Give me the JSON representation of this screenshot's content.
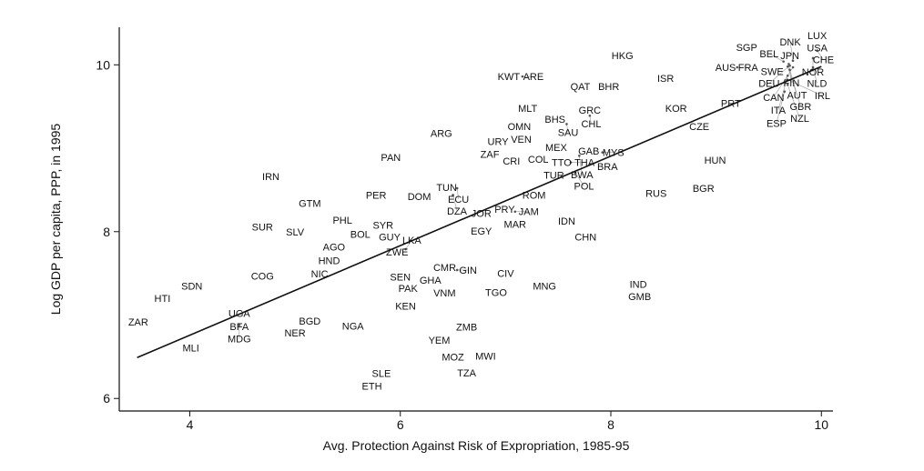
{
  "chart_data": {
    "type": "scatter",
    "title": "",
    "xlabel": "Avg. Protection Against Risk of Expropriation, 1985-95",
    "ylabel": "Log GDP per capita, PPP, in 1995",
    "xlim": [
      3.33,
      10.11
    ],
    "ylim": [
      5.85,
      10.45
    ],
    "xticks": [
      4,
      6,
      8,
      10
    ],
    "yticks": [
      6,
      8,
      10
    ],
    "grid": false,
    "marker": "country-code-label",
    "fit_line": {
      "x": [
        3.5,
        10.0
      ],
      "y": [
        6.49,
        9.98
      ]
    },
    "points": [
      {
        "label": "ZAR",
        "x": 3.51,
        "y": 6.92
      },
      {
        "label": "HTI",
        "x": 3.74,
        "y": 7.2
      },
      {
        "label": "SDN",
        "x": 4.02,
        "y": 7.35
      },
      {
        "label": "MLI",
        "x": 4.01,
        "y": 6.61
      },
      {
        "label": "UGA",
        "x": 4.47,
        "y": 7.02
      },
      {
        "label": "BFA",
        "x": 4.47,
        "y": 6.93
      },
      {
        "label": "MDG",
        "x": 4.47,
        "y": 6.88
      },
      {
        "label": "COG",
        "x": 4.69,
        "y": 7.47
      },
      {
        "label": "SUR",
        "x": 4.69,
        "y": 8.06
      },
      {
        "label": "IRN",
        "x": 4.77,
        "y": 8.66
      },
      {
        "label": "SLV",
        "x": 5.0,
        "y": 8.0
      },
      {
        "label": "GTM",
        "x": 5.14,
        "y": 8.34
      },
      {
        "label": "BGD",
        "x": 5.14,
        "y": 6.93
      },
      {
        "label": "NER",
        "x": 5.0,
        "y": 6.79
      },
      {
        "label": "PHL",
        "x": 5.45,
        "y": 8.14
      },
      {
        "label": "BOL",
        "x": 5.62,
        "y": 7.97
      },
      {
        "label": "SYR",
        "x": 5.81,
        "y": 8.08
      },
      {
        "label": "GUY",
        "x": 5.88,
        "y": 7.96
      },
      {
        "label": "AGO",
        "x": 5.37,
        "y": 7.82
      },
      {
        "label": "HND",
        "x": 5.31,
        "y": 7.75
      },
      {
        "label": "NIC",
        "x": 5.22,
        "y": 7.59
      },
      {
        "label": "NGA",
        "x": 5.55,
        "y": 6.87
      },
      {
        "label": "PER",
        "x": 5.77,
        "y": 8.44
      },
      {
        "label": "PAN",
        "x": 5.91,
        "y": 8.89
      },
      {
        "label": "DOM",
        "x": 6.18,
        "y": 8.42
      },
      {
        "label": "ZWE",
        "x": 5.97,
        "y": 7.76
      },
      {
        "label": "LKA",
        "x": 6.05,
        "y": 7.79
      },
      {
        "label": "SEN",
        "x": 6.0,
        "y": 7.46
      },
      {
        "label": "PAK",
        "x": 6.06,
        "y": 7.42
      },
      {
        "label": "GHA",
        "x": 6.26,
        "y": 7.42
      },
      {
        "label": "CMR",
        "x": 6.44,
        "y": 7.55
      },
      {
        "label": "GIN",
        "x": 6.54,
        "y": 7.54
      },
      {
        "label": "VNM",
        "x": 6.42,
        "y": 7.33
      },
      {
        "label": "KEN",
        "x": 6.05,
        "y": 7.11
      },
      {
        "label": "YEM",
        "x": 6.37,
        "y": 6.7
      },
      {
        "label": "ZMB",
        "x": 6.63,
        "y": 6.86
      },
      {
        "label": "MOZ",
        "x": 6.5,
        "y": 6.5
      },
      {
        "label": "MWI",
        "x": 6.81,
        "y": 6.51
      },
      {
        "label": "SLE",
        "x": 5.82,
        "y": 6.3
      },
      {
        "label": "ETH",
        "x": 5.73,
        "y": 6.15
      },
      {
        "label": "TZA",
        "x": 6.63,
        "y": 6.31
      },
      {
        "label": "TGO",
        "x": 6.91,
        "y": 7.27
      },
      {
        "label": "CIV",
        "x": 7.0,
        "y": 7.5
      },
      {
        "label": "MNG",
        "x": 7.37,
        "y": 7.35
      },
      {
        "label": "EGY",
        "x": 6.77,
        "y": 8.01
      },
      {
        "label": "MAR",
        "x": 7.09,
        "y": 8.09
      },
      {
        "label": "JOR",
        "x": 6.77,
        "y": 8.22
      },
      {
        "label": "PRY",
        "x": 6.94,
        "y": 8.27
      },
      {
        "label": "JAM",
        "x": 7.09,
        "y": 8.24
      },
      {
        "label": "TUN",
        "x": 6.44,
        "y": 8.53
      },
      {
        "label": "ECU",
        "x": 6.54,
        "y": 8.52
      },
      {
        "label": "DZA",
        "x": 6.5,
        "y": 8.44
      },
      {
        "label": "ROM",
        "x": 7.27,
        "y": 8.44
      },
      {
        "label": "IDN",
        "x": 7.58,
        "y": 8.13
      },
      {
        "label": "CHN",
        "x": 7.76,
        "y": 7.94
      },
      {
        "label": "IND",
        "x": 8.26,
        "y": 7.37
      },
      {
        "label": "GMB",
        "x": 8.26,
        "y": 7.32
      },
      {
        "label": "RUS",
        "x": 8.43,
        "y": 8.46
      },
      {
        "label": "BGR",
        "x": 8.88,
        "y": 8.52
      },
      {
        "label": "HUN",
        "x": 8.99,
        "y": 8.86
      },
      {
        "label": "CZE",
        "x": 8.84,
        "y": 9.26
      },
      {
        "label": "KOR",
        "x": 8.62,
        "y": 9.48
      },
      {
        "label": "PRT",
        "x": 9.14,
        "y": 9.54
      },
      {
        "label": "ISR",
        "x": 8.52,
        "y": 9.84
      },
      {
        "label": "HKG",
        "x": 8.11,
        "y": 10.11
      },
      {
        "label": "KWT",
        "x": 7.03,
        "y": 9.86
      },
      {
        "label": "ARE",
        "x": 7.16,
        "y": 9.86
      },
      {
        "label": "QAT",
        "x": 7.71,
        "y": 9.74
      },
      {
        "label": "BHR",
        "x": 7.98,
        "y": 9.74
      },
      {
        "label": "MLT",
        "x": 7.21,
        "y": 9.48
      },
      {
        "label": "GRC",
        "x": 7.8,
        "y": 9.46
      },
      {
        "label": "CHL",
        "x": 7.8,
        "y": 9.39
      },
      {
        "label": "BHS",
        "x": 7.47,
        "y": 9.35
      },
      {
        "label": "SAU",
        "x": 7.58,
        "y": 9.29
      },
      {
        "label": "OMN",
        "x": 7.13,
        "y": 9.26
      },
      {
        "label": "VEN",
        "x": 7.13,
        "y": 9.13
      },
      {
        "label": "URY",
        "x": 6.98,
        "y": 9.08
      },
      {
        "label": "ARG",
        "x": 6.39,
        "y": 9.18
      },
      {
        "label": "ZAF",
        "x": 6.85,
        "y": 8.93
      },
      {
        "label": "CRI",
        "x": 7.03,
        "y": 8.85
      },
      {
        "label": "COL",
        "x": 7.31,
        "y": 8.87
      },
      {
        "label": "MEX",
        "x": 7.48,
        "y": 9.01
      },
      {
        "label": "TTO",
        "x": 7.48,
        "y": 8.83
      },
      {
        "label": "THA",
        "x": 7.62,
        "y": 8.83
      },
      {
        "label": "GAB",
        "x": 7.79,
        "y": 8.97
      },
      {
        "label": "BWA",
        "x": 7.7,
        "y": 8.91
      },
      {
        "label": "MYS",
        "x": 7.92,
        "y": 8.95
      },
      {
        "label": "BRA",
        "x": 7.89,
        "y": 8.78
      },
      {
        "label": "TUR",
        "x": 7.44,
        "y": 8.7
      },
      {
        "label": "POL",
        "x": 7.66,
        "y": 8.71
      },
      {
        "label": "SGP",
        "x": 9.29,
        "y": 10.21
      },
      {
        "label": "AUS",
        "x": 9.09,
        "y": 9.97
      },
      {
        "label": "FRA",
        "x": 9.2,
        "y": 9.97
      },
      {
        "label": "SWE",
        "x": 9.48,
        "y": 9.92
      },
      {
        "label": "LUX",
        "x": 9.96,
        "y": 10.35
      },
      {
        "label": "USA",
        "x": 9.96,
        "y": 10.27
      },
      {
        "label": "CHE",
        "x": 9.96,
        "y": 10.17
      },
      {
        "label": "NOR",
        "x": 9.92,
        "y": 10.08
      },
      {
        "label": "NLD",
        "x": 9.92,
        "y": 9.97
      },
      {
        "label": "JPN",
        "x": 9.7,
        "y": 10.11
      },
      {
        "label": "BEL",
        "x": 9.64,
        "y": 10.04
      },
      {
        "label": "DNK",
        "x": 9.73,
        "y": 10.05
      },
      {
        "label": "FIN",
        "x": 9.69,
        "y": 10.01
      },
      {
        "label": "DEU",
        "x": 9.7,
        "y": 9.99
      },
      {
        "label": "AUT",
        "x": 9.68,
        "y": 9.98
      },
      {
        "label": "CAN",
        "x": 9.73,
        "y": 9.97
      },
      {
        "label": "GBR",
        "x": 9.7,
        "y": 9.94
      },
      {
        "label": "ITA",
        "x": 9.68,
        "y": 9.87
      },
      {
        "label": "IRL",
        "x": 9.68,
        "y": 9.82
      },
      {
        "label": "NZL",
        "x": 9.68,
        "y": 9.76
      },
      {
        "label": "ESP",
        "x": 9.65,
        "y": 9.68
      }
    ]
  }
}
